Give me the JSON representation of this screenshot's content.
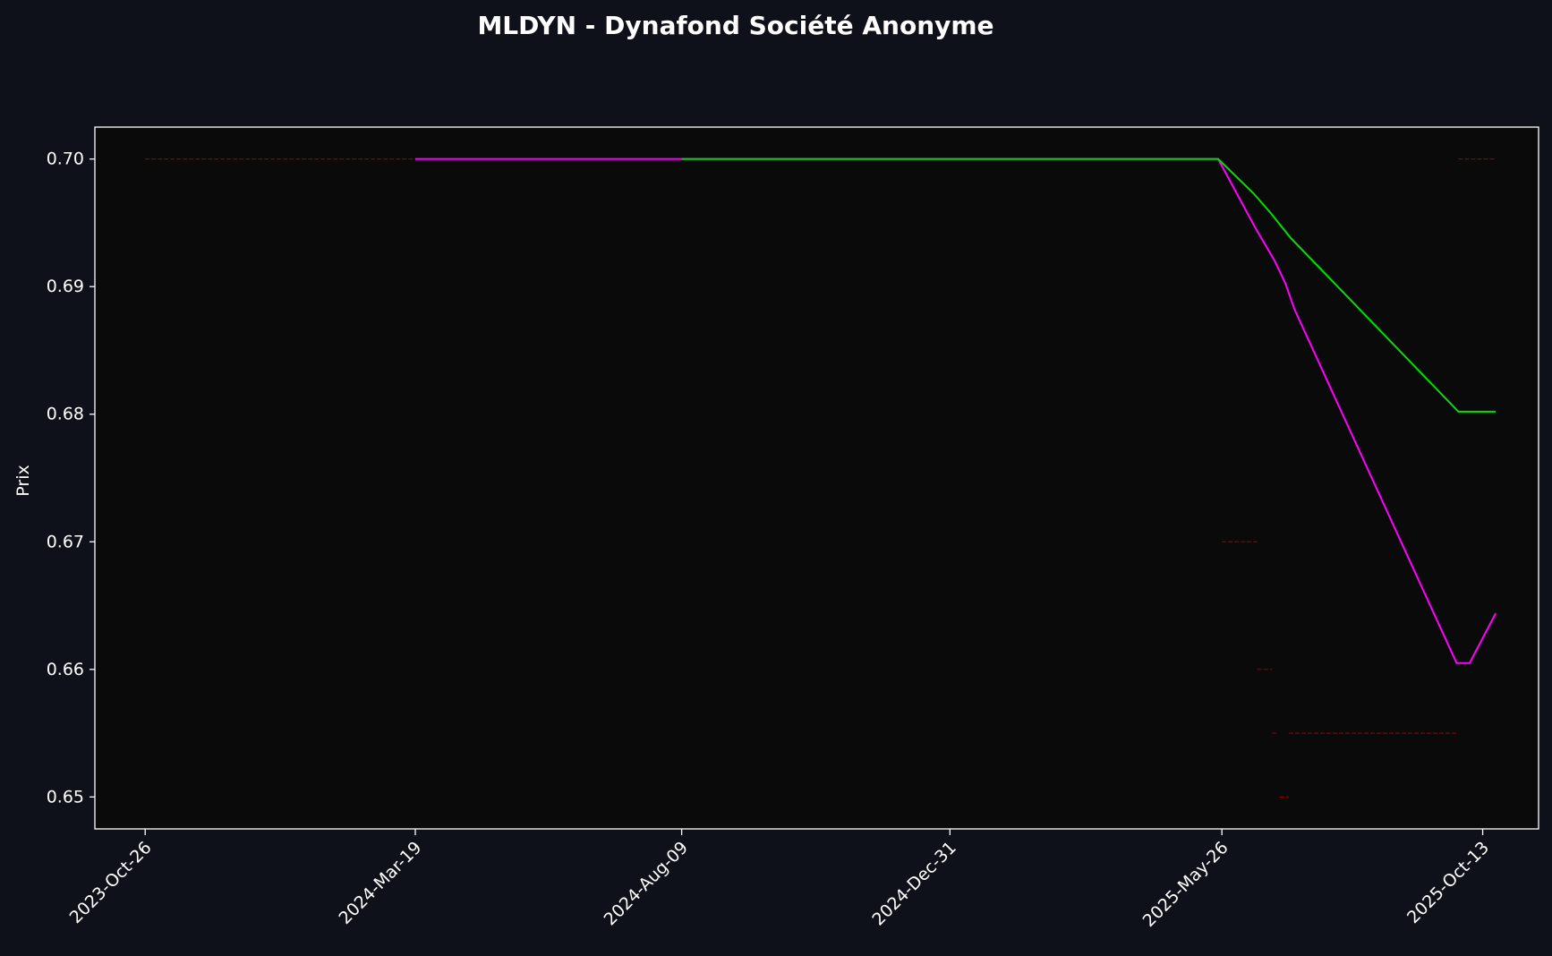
{
  "chart_data": {
    "type": "line",
    "title": "MLDYN - Dynafond Société Anonyme",
    "ylabel": "Prix",
    "xlabel": "",
    "x_axis": {
      "kind": "date",
      "range": [
        "2023-09-29",
        "2025-11-12"
      ],
      "ticks": [
        "2023-10-26",
        "2024-03-19",
        "2024-08-09",
        "2024-12-31",
        "2025-05-26",
        "2025-10-13"
      ],
      "tick_labels": [
        "2023-Oct-26",
        "2024-Mar-19",
        "2024-Aug-09",
        "2024-Dec-31",
        "2025-May-26",
        "2025-Oct-13"
      ]
    },
    "y_axis": {
      "range": [
        0.6475,
        0.7025
      ],
      "ticks": [
        0.65,
        0.66,
        0.67,
        0.68,
        0.69,
        0.7
      ],
      "tick_labels": [
        "0.65",
        "0.66",
        "0.67",
        "0.68",
        "0.69",
        "0.70"
      ]
    },
    "grid": false,
    "colors": {
      "figure_bg": "#0e111a",
      "plot_bg": "#0a0a0a",
      "axis": "#ffffff",
      "text": "#ffffff",
      "price_marks": "#8b0000"
    },
    "series": [
      {
        "color": "#ff00ff",
        "points": [
          [
            "2024-03-19",
            0.7
          ],
          [
            "2024-08-09",
            0.7
          ],
          [
            "2024-12-31",
            0.7
          ],
          [
            "2025-05-24",
            0.7
          ],
          [
            "2025-06-13",
            0.6946
          ],
          [
            "2025-06-23",
            0.6921
          ],
          [
            "2025-06-29",
            0.6903
          ],
          [
            "2025-07-04",
            0.6882
          ],
          [
            "2025-09-29",
            0.6605
          ],
          [
            "2025-10-06",
            0.6605
          ],
          [
            "2025-10-20",
            0.6644
          ]
        ]
      },
      {
        "color": "#00e000",
        "points": [
          [
            "2024-08-09",
            0.7
          ],
          [
            "2024-12-31",
            0.7
          ],
          [
            "2025-05-24",
            0.7
          ],
          [
            "2025-06-12",
            0.6973
          ],
          [
            "2025-06-21",
            0.6958
          ],
          [
            "2025-07-02",
            0.6938
          ],
          [
            "2025-09-30",
            0.6802
          ],
          [
            "2025-10-20",
            0.6802
          ]
        ]
      }
    ],
    "price_segments": [
      {
        "from": "2023-10-26",
        "to": "2024-03-19",
        "y": 0.7
      },
      {
        "from": "2025-05-26",
        "to": "2025-06-14",
        "y": 0.67
      },
      {
        "from": "2025-06-14",
        "to": "2025-06-22",
        "y": 0.66
      },
      {
        "from": "2025-06-22",
        "to": "2025-06-25",
        "y": 0.655
      },
      {
        "from": "2025-06-26",
        "to": "2025-07-01",
        "y": 0.65
      },
      {
        "from": "2025-07-01",
        "to": "2025-09-30",
        "y": 0.655
      },
      {
        "from": "2025-09-30",
        "to": "2025-10-20",
        "y": 0.7
      }
    ]
  }
}
